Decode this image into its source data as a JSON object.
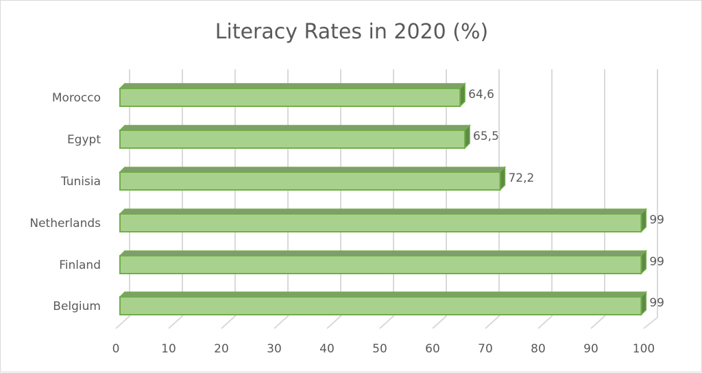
{
  "chart_data": {
    "type": "bar",
    "orientation": "horizontal",
    "style": "3d-clustered",
    "title": "Literacy Rates in 2020 (%)",
    "categories": [
      "Morocco",
      "Egypt",
      "Tunisia",
      "Netherlands",
      "Finland",
      "Belgium"
    ],
    "values": [
      64.6,
      65.5,
      72.2,
      99,
      99,
      99
    ],
    "value_labels": [
      "64,6",
      "65,5",
      "72,2",
      "99",
      "99",
      "99"
    ],
    "xlabel": "",
    "ylabel": "",
    "xlim": [
      0,
      100
    ],
    "xticks": [
      0,
      10,
      20,
      30,
      40,
      50,
      60,
      70,
      80,
      90,
      100
    ],
    "grid": true,
    "legend": "none",
    "colors": {
      "bar_fill": "#a9d18e",
      "bar_border": "#70ad47",
      "bar_top": "#7f9f6a",
      "bar_side": "#5e8a45",
      "grid": "#d9d9d9",
      "text": "#595959"
    }
  }
}
